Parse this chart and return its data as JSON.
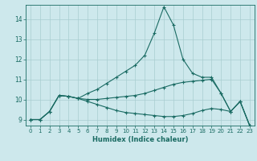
{
  "xlabel": "Humidex (Indice chaleur)",
  "ylabel": "",
  "bg_color": "#cde8ec",
  "line_color": "#1a6b63",
  "xlim_min": -0.5,
  "xlim_max": 23.5,
  "ylim_min": 8.7,
  "ylim_max": 14.7,
  "yticks": [
    9,
    10,
    11,
    12,
    13,
    14
  ],
  "xticks": [
    0,
    1,
    2,
    3,
    4,
    5,
    6,
    7,
    8,
    9,
    10,
    11,
    12,
    13,
    14,
    15,
    16,
    17,
    18,
    19,
    20,
    21,
    22,
    23
  ],
  "line1_x": [
    0,
    1,
    2,
    3,
    4,
    5,
    6,
    7,
    8,
    9,
    10,
    11,
    12,
    13,
    14,
    15,
    16,
    17,
    18,
    19,
    20,
    21,
    22,
    23
  ],
  "line1_y": [
    9.0,
    9.0,
    9.4,
    10.2,
    10.15,
    10.05,
    10.3,
    10.5,
    10.8,
    11.1,
    11.4,
    11.7,
    12.2,
    13.3,
    14.6,
    13.7,
    12.0,
    11.3,
    11.1,
    11.1,
    10.3,
    9.4,
    9.9,
    8.7
  ],
  "line2_x": [
    0,
    1,
    2,
    3,
    4,
    5,
    6,
    7,
    8,
    9,
    10,
    11,
    12,
    13,
    14,
    15,
    16,
    17,
    18,
    19,
    20,
    21,
    22,
    23
  ],
  "line2_y": [
    9.0,
    9.0,
    9.4,
    10.2,
    10.15,
    10.05,
    10.0,
    10.0,
    10.05,
    10.1,
    10.15,
    10.2,
    10.3,
    10.45,
    10.6,
    10.75,
    10.85,
    10.9,
    10.95,
    11.0,
    10.3,
    9.4,
    9.9,
    8.7
  ],
  "line3_x": [
    0,
    1,
    2,
    3,
    4,
    5,
    6,
    7,
    8,
    9,
    10,
    11,
    12,
    13,
    14,
    15,
    16,
    17,
    18,
    19,
    20,
    21,
    22,
    23
  ],
  "line3_y": [
    9.0,
    9.0,
    9.4,
    10.2,
    10.15,
    10.05,
    9.9,
    9.75,
    9.6,
    9.45,
    9.35,
    9.3,
    9.25,
    9.2,
    9.15,
    9.15,
    9.2,
    9.3,
    9.45,
    9.55,
    9.5,
    9.4,
    9.9,
    8.7
  ]
}
